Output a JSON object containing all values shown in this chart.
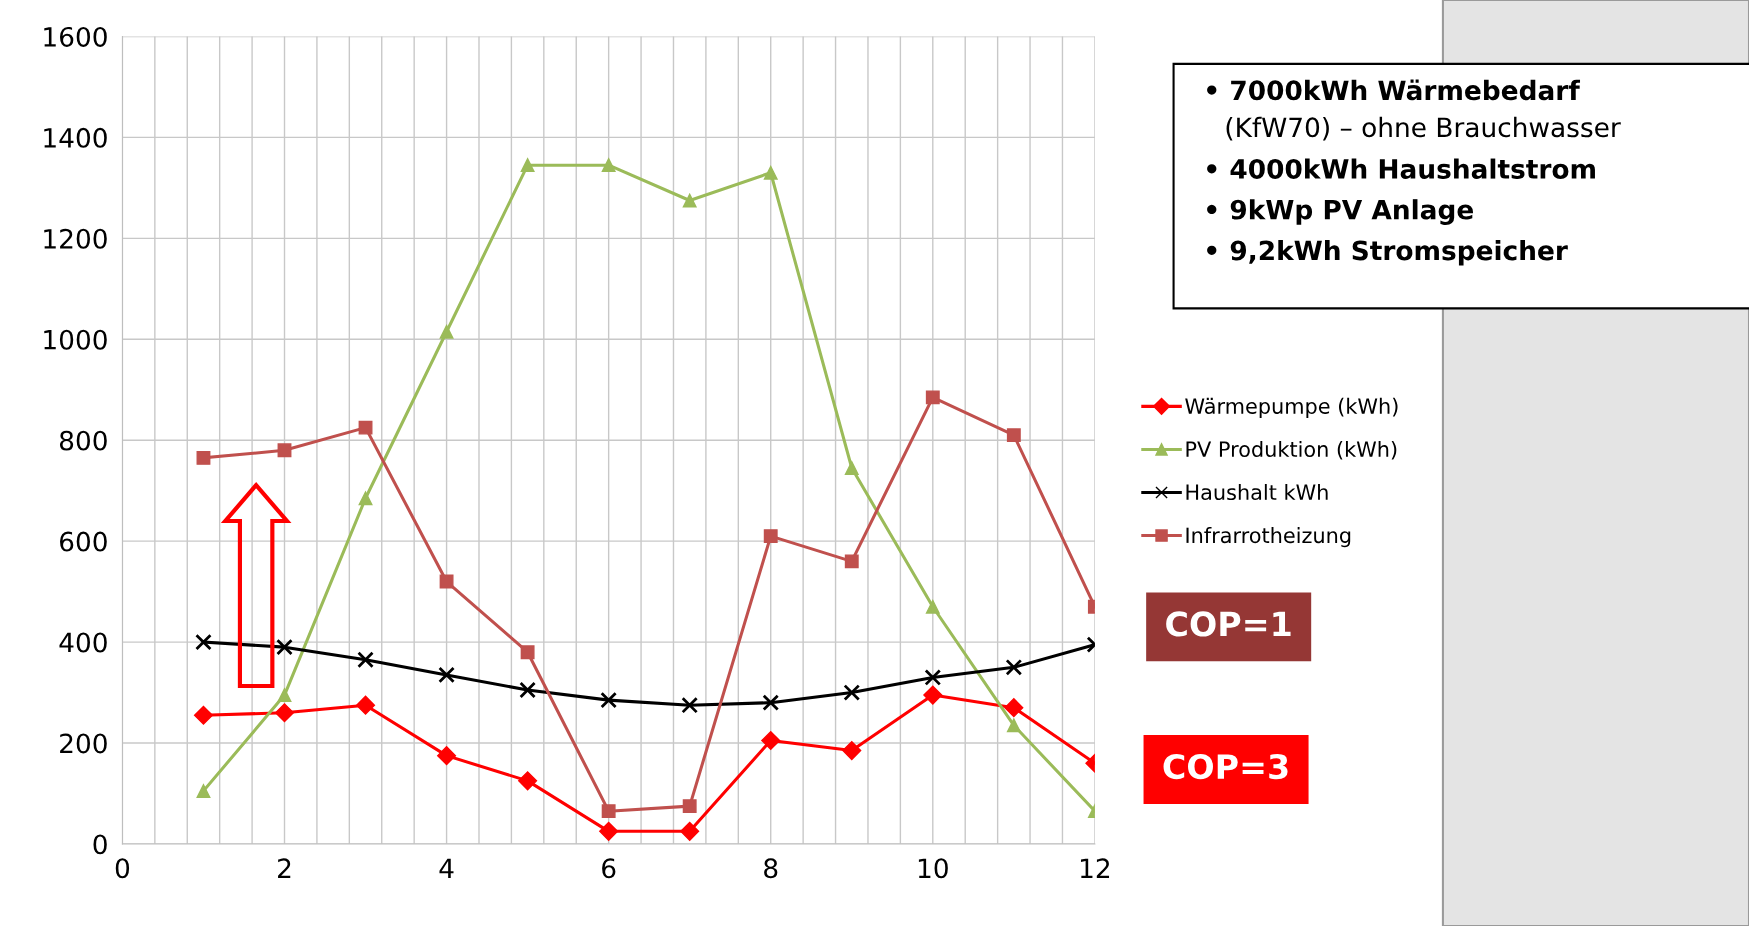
{
  "chart_data": {
    "type": "line",
    "x": [
      1,
      2,
      3,
      4,
      5,
      6,
      7,
      8,
      9,
      10,
      11,
      12
    ],
    "series": [
      {
        "name": "Wärmepumpe (kWh)",
        "color": "#ff0000",
        "marker": "diamond",
        "values": [
          255,
          260,
          275,
          175,
          125,
          25,
          25,
          205,
          185,
          295,
          270,
          160
        ]
      },
      {
        "name": "PV Produktion (kWh)",
        "color": "#9bbb59",
        "marker": "triangle",
        "values": [
          105,
          295,
          685,
          1015,
          1345,
          1345,
          1275,
          1330,
          745,
          470,
          235,
          65
        ]
      },
      {
        "name": "Haushalt kWh",
        "color": "#000000",
        "marker": "cross",
        "values": [
          400,
          390,
          365,
          335,
          305,
          285,
          275,
          280,
          300,
          330,
          350,
          395
        ]
      },
      {
        "name": "Infrarrotheizung",
        "color": "#c0504d",
        "marker": "square",
        "values": [
          765,
          780,
          825,
          520,
          380,
          65,
          75,
          610,
          560,
          885,
          810,
          470
        ]
      }
    ],
    "xlim": [
      0,
      12
    ],
    "xticks": [
      0,
      {
        "value": 0.4,
        "label": null
      },
      {
        "value": 0.8,
        "label": null
      },
      {
        "value": 1.2,
        "label": null
      },
      {
        "value": 1.6,
        "label": null
      },
      2,
      {
        "value": 2.4,
        "label": null
      },
      {
        "value": 2.8,
        "label": null
      },
      {
        "value": 3.2,
        "label": null
      },
      {
        "value": 3.6,
        "label": null
      },
      4,
      {
        "value": 4.4,
        "label": null
      },
      {
        "value": 4.8,
        "label": null
      },
      {
        "value": 5.2,
        "label": null
      },
      {
        "value": 5.6,
        "label": null
      },
      6,
      {
        "value": 6.4,
        "label": null
      },
      {
        "value": 6.8,
        "label": null
      },
      {
        "value": 7.2,
        "label": null
      },
      {
        "value": 7.6,
        "label": null
      },
      8,
      {
        "value": 8.4,
        "label": null
      },
      {
        "value": 8.8,
        "label": null
      },
      {
        "value": 9.2,
        "label": null
      },
      {
        "value": 9.6,
        "label": null
      },
      10,
      {
        "value": 10.4,
        "label": null
      },
      {
        "value": 10.8,
        "label": null
      },
      {
        "value": 11.2,
        "label": null
      },
      {
        "value": 11.6,
        "label": null
      },
      12
    ],
    "ylim": [
      0,
      1600
    ],
    "yticks": [
      0,
      200,
      400,
      600,
      800,
      1000,
      1200,
      1400,
      1600
    ],
    "grid": true,
    "legend": "right",
    "annotations": [
      "• 7000kWh Wärmebedarf",
      "(KfW70) – ohne Brauchwasser",
      "• 4000kWh Haushaltstrom",
      "• 9kWp PV Anlage",
      "• 9,2kWh Stromspeicher",
      "COP=1",
      "COP=3"
    ]
  }
}
